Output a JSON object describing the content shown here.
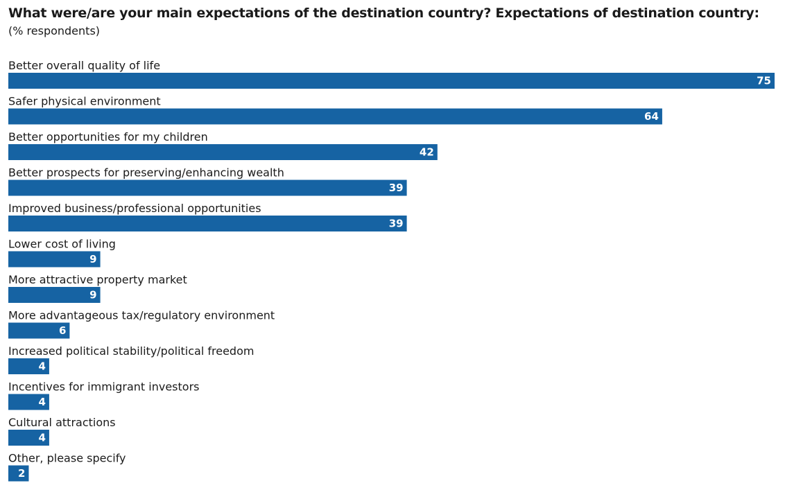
{
  "chart_data": {
    "type": "bar",
    "orientation": "horizontal",
    "title": "What were/are your main expectations of the destination country? Expectations of destination country:",
    "subtitle": "(% respondents)",
    "categories": [
      "Better overall quality of life",
      "Safer physical environment",
      "Better opportunities for my children",
      "Better prospects for preserving/enhancing wealth",
      "Improved business/professional opportunities",
      "Lower cost of living",
      "More attractive property market",
      "More advantageous tax/regulatory environment",
      "Increased political stability/political freedom",
      "Incentives for immigrant investors",
      "Cultural attractions",
      "Other, please specify"
    ],
    "values": [
      75,
      64,
      42,
      39,
      39,
      9,
      9,
      6,
      4,
      4,
      4,
      2
    ],
    "xlim": [
      0,
      75
    ],
    "grid": false,
    "legend": "none",
    "bar_color": "#1663a3",
    "value_label_color": "#ffffff"
  }
}
